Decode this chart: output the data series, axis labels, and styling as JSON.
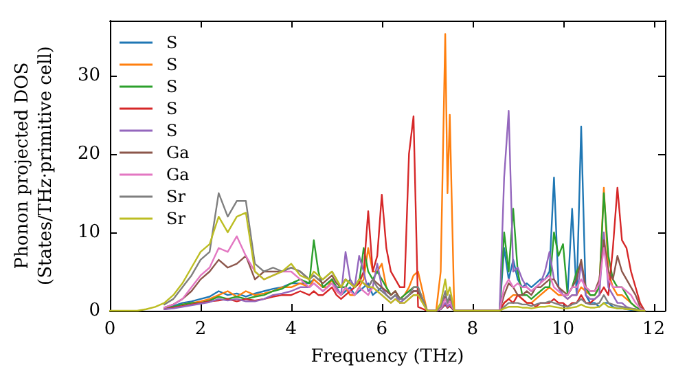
{
  "chart_data": {
    "type": "line",
    "xlabel": "Frequency (THz)",
    "ylabel": "Phonon projected DOS\n(States/THz·primitive cell)",
    "xlim": [
      0,
      12.25
    ],
    "xticks": [
      0,
      2,
      4,
      6,
      8,
      10,
      12
    ],
    "ylim": [
      0,
      37
    ],
    "yticks": [
      0,
      10,
      20,
      30
    ],
    "legend": "top left",
    "grid": false,
    "marker": "none",
    "line_style": "solid",
    "x": [
      0,
      0.2,
      0.4,
      0.6,
      0.8,
      1.0,
      1.2,
      1.4,
      1.6,
      1.8,
      2.0,
      2.2,
      2.4,
      2.6,
      2.8,
      3.0,
      3.2,
      3.4,
      3.6,
      3.8,
      4.0,
      4.2,
      4.4,
      4.5,
      4.6,
      4.7,
      4.8,
      4.9,
      5.0,
      5.1,
      5.2,
      5.3,
      5.4,
      5.5,
      5.6,
      5.7,
      5.8,
      5.9,
      6.0,
      6.1,
      6.2,
      6.3,
      6.4,
      6.5,
      6.6,
      6.7,
      6.8,
      7.0,
      7.2,
      7.3,
      7.4,
      7.45,
      7.5,
      7.6,
      7.8,
      8.0,
      8.4,
      8.6,
      8.7,
      8.8,
      8.9,
      9.0,
      9.1,
      9.2,
      9.3,
      9.4,
      9.5,
      9.6,
      9.7,
      9.8,
      9.9,
      10.0,
      10.1,
      10.2,
      10.3,
      10.4,
      10.5,
      10.6,
      10.7,
      10.8,
      10.9,
      11.0,
      11.1,
      11.2,
      11.3,
      11.4,
      11.5,
      11.6,
      11.7,
      11.8
    ],
    "series": [
      {
        "name": "S",
        "color": "#1f77b4",
        "values": [
          null,
          null,
          null,
          null,
          null,
          null,
          0.4,
          0.6,
          1,
          1.2,
          1.5,
          1.8,
          2.5,
          2,
          2.2,
          1.8,
          2.2,
          2.5,
          2.8,
          3,
          3.5,
          3.5,
          3.5,
          4,
          3.5,
          3,
          3.5,
          4,
          3,
          2,
          2.5,
          3,
          2,
          2.5,
          3,
          3.5,
          2,
          2.5,
          3,
          2,
          1.5,
          2,
          1,
          1.5,
          2,
          2.5,
          2.5,
          0,
          0,
          0.2,
          0.8,
          0.4,
          0.6,
          0,
          0,
          0,
          0,
          0,
          8,
          4,
          6.5,
          4,
          3,
          3.5,
          3,
          3.5,
          4,
          4,
          5,
          17,
          3,
          2,
          2,
          13,
          2,
          23.5,
          2,
          1,
          1,
          0.5,
          1,
          1,
          0.5,
          0.3,
          0.3,
          0.2,
          0.1,
          0.1,
          0,
          0
        ]
      },
      {
        "name": "S",
        "color": "#ff7f0e",
        "values": [
          null,
          null,
          null,
          null,
          null,
          null,
          null,
          null,
          0.8,
          1,
          1.2,
          1.5,
          2,
          2.5,
          1.8,
          2.5,
          2,
          2.2,
          2.5,
          3,
          3,
          3.5,
          3,
          4,
          3.5,
          3,
          3,
          4,
          2.5,
          2,
          3,
          2,
          2,
          3,
          4,
          8,
          5,
          5,
          6,
          3,
          2,
          2.5,
          1.5,
          2,
          3,
          4.5,
          5,
          0,
          0,
          5,
          35.3,
          15,
          25,
          0,
          0,
          0,
          0,
          0,
          1,
          1.5,
          2,
          2,
          1.5,
          1,
          1,
          1.5,
          2,
          2.5,
          3,
          2.5,
          2,
          2,
          1.5,
          2,
          2,
          3,
          2.5,
          2,
          2,
          3,
          15.7,
          5,
          3,
          2,
          2,
          1.5,
          1,
          0.5,
          null,
          null
        ]
      },
      {
        "name": "S",
        "color": "#2ca02c",
        "values": [
          null,
          null,
          null,
          null,
          null,
          null,
          0.3,
          0.5,
          0.8,
          1,
          1,
          1.3,
          1.8,
          1.5,
          1.8,
          1.5,
          1.8,
          2,
          2.5,
          2.8,
          3.5,
          4,
          3.5,
          9,
          5,
          3,
          3.5,
          4,
          3,
          3,
          3,
          4,
          3,
          3.5,
          8,
          5,
          4,
          5,
          4,
          3,
          2,
          2.5,
          1.5,
          2,
          2.5,
          3,
          3,
          0,
          0,
          0.2,
          0.8,
          0.4,
          0.6,
          0,
          0,
          0,
          0,
          0,
          10,
          5,
          13,
          5,
          2,
          2,
          1.5,
          2,
          2.5,
          3,
          3,
          10,
          7,
          8.5,
          2,
          3,
          5,
          6,
          3,
          2,
          2,
          3,
          15,
          7,
          4,
          3,
          3,
          2,
          1,
          0.5,
          0.2,
          0
        ]
      },
      {
        "name": "S",
        "color": "#d62728",
        "values": [
          null,
          null,
          null,
          null,
          null,
          null,
          0.2,
          0.4,
          0.6,
          0.8,
          1,
          1.2,
          1.3,
          1.5,
          1.2,
          1.5,
          1.3,
          1.5,
          1.8,
          2,
          2,
          2.5,
          2,
          2.5,
          2,
          2,
          2.5,
          3,
          2,
          1.5,
          2,
          2.5,
          3,
          3.5,
          5,
          12.7,
          5,
          7,
          14.8,
          8,
          5,
          4,
          3,
          3,
          20,
          24.8,
          0.5,
          0,
          0,
          0.2,
          0.8,
          0.4,
          0.6,
          0,
          0,
          0,
          0,
          0,
          1,
          1.5,
          1,
          2,
          1.5,
          1,
          1,
          0.5,
          1,
          1,
          1,
          1.5,
          1,
          1,
          0.5,
          1,
          1,
          2,
          1,
          1,
          1.5,
          2,
          3,
          2,
          8,
          15.7,
          9,
          8,
          5,
          3,
          1,
          0
        ]
      },
      {
        "name": "S",
        "color": "#9467bd",
        "values": [
          null,
          null,
          null,
          null,
          null,
          null,
          0.2,
          0.3,
          0.5,
          0.7,
          0.9,
          1.1,
          1.5,
          1.3,
          1.5,
          1.2,
          1.2,
          1.5,
          2,
          2.2,
          2.5,
          3,
          3,
          3.5,
          3,
          2.5,
          3,
          3.5,
          3,
          2,
          7.5,
          4,
          3,
          7,
          5,
          2.5,
          3,
          6,
          3,
          2,
          1.5,
          2,
          1,
          1.5,
          2,
          2.5,
          2.5,
          0,
          0,
          0.2,
          1,
          0.5,
          0.8,
          0,
          0,
          0,
          0,
          0,
          17,
          25.5,
          5,
          5.5,
          4,
          3,
          2.5,
          3,
          3.5,
          5,
          7.5,
          4,
          3,
          2,
          1.5,
          2,
          2,
          6,
          2,
          1.5,
          1.5,
          2,
          10,
          3,
          2,
          1,
          1,
          0.5,
          0.3,
          0.2,
          0,
          0
        ]
      },
      {
        "name": "Ga",
        "color": "#8c564b",
        "values": [
          null,
          null,
          null,
          null,
          null,
          null,
          0.4,
          0.8,
          1.5,
          2.5,
          4,
          5,
          6.5,
          5.5,
          6,
          7,
          4,
          5,
          5,
          5,
          5.5,
          5,
          4,
          4.5,
          4,
          3.5,
          4,
          4.5,
          3.5,
          3,
          4,
          3.5,
          3,
          4,
          3.5,
          3,
          4,
          3.5,
          3,
          2.5,
          2,
          2.5,
          1.5,
          1.5,
          2,
          2.5,
          2.5,
          0,
          0,
          0.3,
          1.8,
          0.8,
          1.5,
          0,
          0,
          0,
          0,
          0,
          2,
          3.5,
          3,
          2,
          2,
          2.5,
          2,
          3,
          3,
          3.5,
          4,
          4,
          3,
          2.5,
          2,
          3,
          4,
          6.5,
          3,
          2.5,
          2.5,
          4,
          9,
          5,
          4,
          7,
          5,
          4,
          3,
          2,
          0.5,
          0
        ]
      },
      {
        "name": "Ga",
        "color": "#e377c2",
        "values": [
          null,
          null,
          null,
          null,
          null,
          null,
          0.4,
          0.8,
          1.5,
          3,
          4.5,
          5.5,
          8,
          7.5,
          9.5,
          7,
          5,
          4,
          4.5,
          5,
          5,
          4,
          3,
          3.5,
          3,
          2.5,
          3,
          3.5,
          2.5,
          2,
          3,
          2.5,
          2,
          3,
          2.5,
          2,
          3,
          2.5,
          2,
          1.5,
          1,
          1.5,
          1,
          1,
          1.5,
          2,
          2,
          0,
          0,
          0.3,
          1.5,
          0.8,
          1.2,
          0,
          0,
          0,
          0,
          0,
          3,
          4,
          3,
          3.5,
          3,
          3,
          2.5,
          3,
          3.5,
          4,
          4.5,
          3,
          2.5,
          2,
          2,
          3,
          3,
          4,
          3,
          2.5,
          2.5,
          3.5,
          8,
          4,
          3,
          3,
          3,
          2.5,
          2,
          1,
          0.3,
          0
        ]
      },
      {
        "name": "Sr",
        "color": "#7f7f7f",
        "values": [
          null,
          null,
          null,
          null,
          null,
          null,
          0.8,
          1.5,
          3,
          4.5,
          6.5,
          7.5,
          15,
          12,
          14,
          14,
          6,
          5,
          5.5,
          5,
          5.5,
          5,
          4,
          4.5,
          4,
          4,
          4.5,
          5,
          4,
          3,
          4,
          3.5,
          3,
          4,
          3.5,
          3,
          4,
          3,
          2.5,
          2,
          1.5,
          2,
          1.5,
          1.5,
          2,
          3,
          3,
          0,
          0,
          0.5,
          2.5,
          1,
          2,
          0,
          0,
          0,
          0,
          0,
          0.5,
          1,
          1,
          1,
          0.8,
          0.8,
          0.6,
          0.8,
          1,
          1,
          1.2,
          1,
          0.8,
          0.6,
          0.5,
          0.8,
          1,
          1.5,
          1,
          0.8,
          0.8,
          1,
          2,
          1,
          0.8,
          0.6,
          0.5,
          0.4,
          0.3,
          0.2,
          0,
          0
        ]
      },
      {
        "name": "Sr",
        "color": "#bcbd22",
        "values": [
          0,
          0,
          0,
          0,
          0.2,
          0.5,
          1,
          2,
          3.5,
          5.5,
          7.5,
          8.5,
          12,
          10,
          12,
          12.5,
          5,
          4,
          4.5,
          5,
          6,
          4.5,
          4,
          5,
          4.5,
          4,
          4.5,
          5,
          4,
          3,
          4,
          3.5,
          3,
          4,
          3.5,
          3,
          3,
          2.5,
          2,
          1.5,
          1,
          1.5,
          1,
          1,
          1.5,
          2,
          2,
          0,
          0,
          1,
          4,
          2,
          3,
          0,
          0,
          0,
          0,
          0,
          0.3,
          0.5,
          0.5,
          0.5,
          0.4,
          0.4,
          0.3,
          0.4,
          0.5,
          0.5,
          0.6,
          0.5,
          0.4,
          0.3,
          0.3,
          0.4,
          0.5,
          0.8,
          0.5,
          0.4,
          0.4,
          0.5,
          1,
          0.5,
          0.4,
          0.3,
          0.3,
          0.2,
          0.2,
          0.1,
          0,
          0
        ]
      }
    ]
  }
}
